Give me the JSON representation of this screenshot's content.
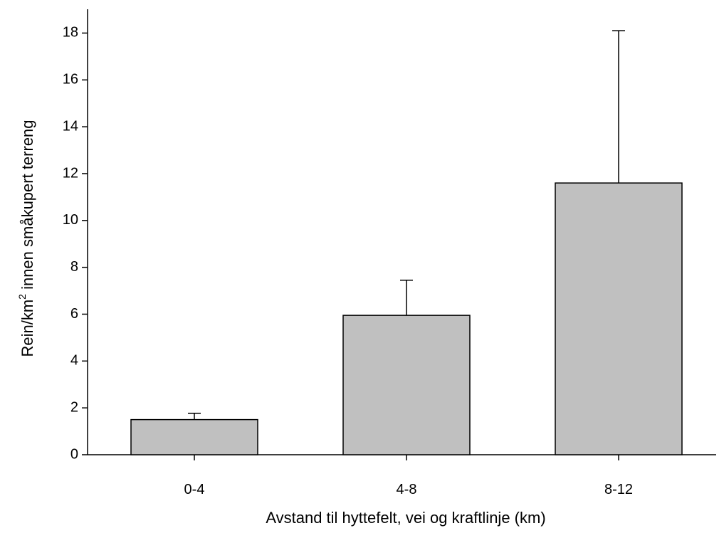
{
  "chart_data": {
    "type": "bar",
    "categories": [
      "0-4",
      "4-8",
      "8-12"
    ],
    "values": [
      1.5,
      5.95,
      11.6
    ],
    "error_upper": [
      1.77,
      7.45,
      18.1
    ],
    "xlabel": "Avstand til hyttefelt, vei og kraftlinje (km)",
    "ylabel": {
      "prefix": "Rein/km",
      "superscript": "2",
      "suffix": " innen småkupert terreng"
    },
    "ylim": [
      0,
      18.5
    ],
    "yticks": [
      0,
      2,
      4,
      6,
      8,
      10,
      12,
      14,
      16,
      18
    ],
    "grid": false,
    "bar_color": "#c0c0c0",
    "bar_edge_color": "#000000"
  }
}
